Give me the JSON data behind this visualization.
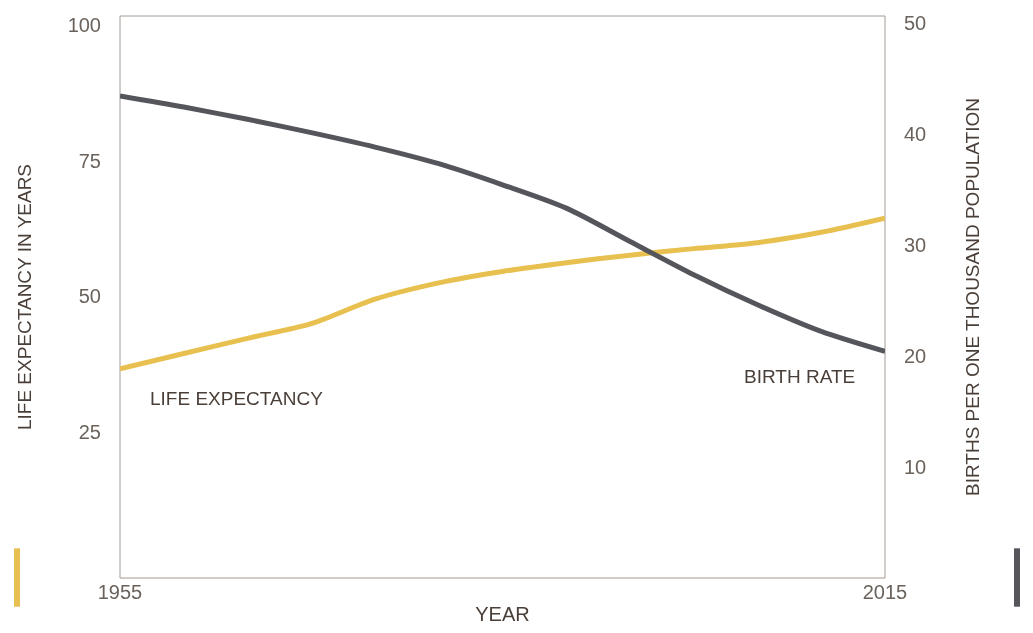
{
  "chart_data": {
    "type": "line",
    "xlabel": "YEAR",
    "ylabel": "LIFE EXPECTANCY IN YEARS",
    "y2label": "BIRTHS PER ONE THOUSAND POPULATION",
    "x": [
      1955,
      1960,
      1965,
      1970,
      1975,
      1980,
      1985,
      1990,
      1995,
      2000,
      2005,
      2010,
      2015
    ],
    "series": [
      {
        "name": "LIFE EXPECTANCY",
        "color": "#e8c04f",
        "values": [
          36.7,
          39.5,
          42.3,
          45,
          49.5,
          52.5,
          54.6,
          56.2,
          57.6,
          58.8,
          59.9,
          61.8,
          64.4
        ]
      },
      {
        "name": "BIRTH RATE",
        "color": "#55565b",
        "axis": "y2",
        "values": [
          43.4,
          42.4,
          41.3,
          40.1,
          38.8,
          37.3,
          35.4,
          33.3,
          30.3,
          27.3,
          24.6,
          22.2,
          20.4
        ]
      }
    ],
    "xlim": [
      1955,
      2015
    ],
    "xticks": [
      1955,
      2015
    ],
    "ylim": [
      -1.8,
      101.6
    ],
    "yticks": [
      25,
      50,
      75,
      100
    ],
    "y2lim": [
      0,
      50.6
    ],
    "y2ticks": [
      10,
      20,
      30,
      40,
      50
    ],
    "legend": false,
    "marker": "none",
    "line_style": "solid"
  }
}
